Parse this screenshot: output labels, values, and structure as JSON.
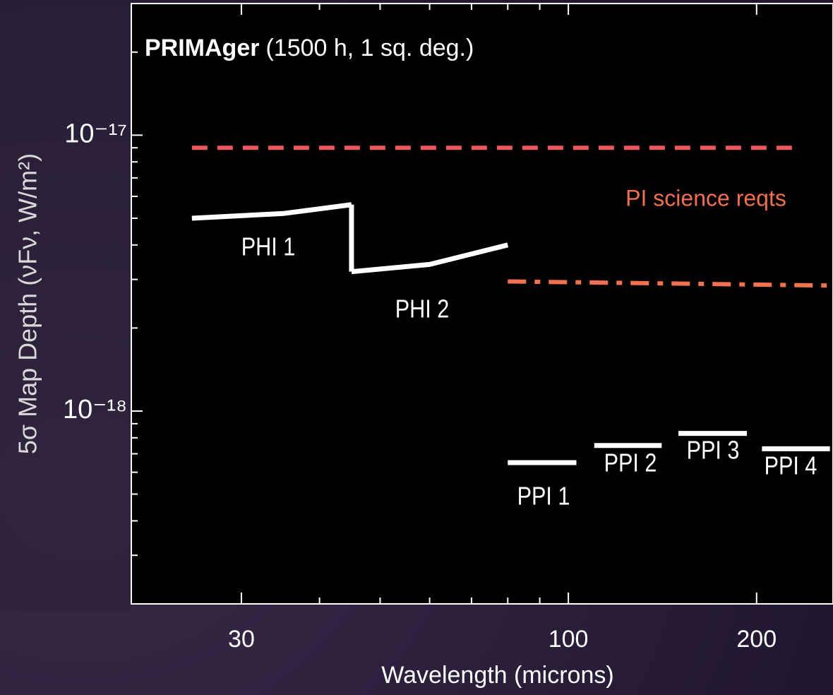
{
  "chart_data": {
    "type": "line",
    "title": "PRIMAger",
    "subtitle": "(1500 h, 1 sq. deg.)",
    "xlabel": "Wavelength (microns)",
    "ylabel": "5σ Map Depth (νFν, W/m²)",
    "xscale": "log",
    "yscale": "log",
    "xlim": [
      20,
      265
    ],
    "ylim": [
      2e-19,
      3e-17
    ],
    "xticks": [
      30,
      100,
      200
    ],
    "xminorticks": [
      40,
      50,
      60,
      70,
      80,
      90
    ],
    "yticks": [
      {
        "value": 1e-18,
        "label": "10⁻¹⁸"
      },
      {
        "value": 1e-17,
        "label": "10⁻¹⁷"
      }
    ],
    "yminorticks": [
      3e-19,
      4e-19,
      5e-19,
      6e-19,
      7e-19,
      8e-19,
      9e-19,
      2e-18,
      3e-18,
      4e-18,
      5e-18,
      6e-18,
      7e-18,
      8e-18,
      9e-18,
      2e-17
    ],
    "series": [
      {
        "name": "PI science reqts",
        "color": "#e8585e",
        "style": "dashed",
        "x": [
          25,
          233
        ],
        "values": [
          9e-18,
          9e-18
        ]
      },
      {
        "color": "#f07050",
        "style": "dashdot",
        "x": [
          80,
          265
        ],
        "values": [
          2.95e-18,
          2.85e-18
        ]
      },
      {
        "name": "PHI 1",
        "color": "#ffffff",
        "style": "solid",
        "x": [
          25,
          35,
          45
        ],
        "values": [
          5e-18,
          5.2e-18,
          5.6e-18
        ]
      },
      {
        "name": "PHI 2",
        "color": "#ffffff",
        "style": "solid",
        "x": [
          45,
          60,
          80
        ],
        "values": [
          3.2e-18,
          3.4e-18,
          4e-18
        ]
      },
      {
        "name": "PPI 1",
        "color": "#ffffff",
        "style": "solid",
        "x": [
          80,
          103
        ],
        "values": [
          6.5e-19,
          6.5e-19
        ]
      },
      {
        "name": "PPI 2",
        "color": "#ffffff",
        "style": "solid",
        "x": [
          110,
          141
        ],
        "values": [
          7.5e-19,
          7.5e-19
        ]
      },
      {
        "name": "PPI 3",
        "color": "#ffffff",
        "style": "solid",
        "x": [
          150,
          193
        ],
        "values": [
          8.3e-19,
          8.3e-19
        ]
      },
      {
        "name": "PPI 4",
        "color": "#ffffff",
        "style": "solid",
        "x": [
          204,
          262
        ],
        "values": [
          7.3e-19,
          7.3e-19
        ]
      }
    ]
  }
}
